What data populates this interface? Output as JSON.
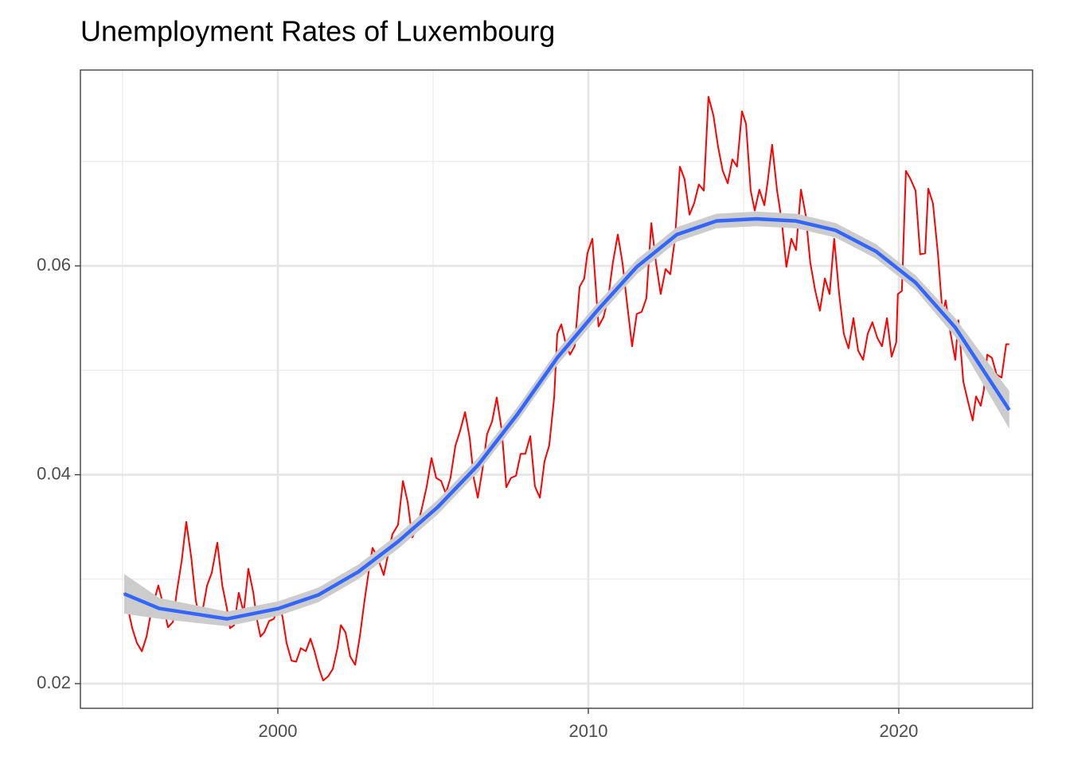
{
  "chart_data": {
    "type": "line",
    "title": "Unemployment Rates of Luxembourg",
    "xlim": [
      1993.64,
      2024.31
    ],
    "ylim": [
      0.01764,
      0.07875
    ],
    "xticks": [
      2000,
      2010,
      2020
    ],
    "yticks": [
      0.02,
      0.04,
      0.06
    ],
    "x_minor_grid": [
      1995,
      2005,
      2015
    ],
    "y_minor_grid": [
      0.03,
      0.05,
      0.07
    ],
    "grid": true,
    "series": [
      {
        "color": "#ff0000",
        "x": [
          1995.05,
          1995.15,
          1995.31,
          1995.46,
          1995.62,
          1995.77,
          1995.92,
          1996.15,
          1996.31,
          1996.46,
          1996.62,
          1996.74,
          1996.9,
          1997.05,
          1997.21,
          1997.36,
          1997.51,
          1997.72,
          1997.87,
          1998.05,
          1998.21,
          1998.36,
          1998.46,
          1998.59,
          1998.74,
          1998.9,
          1999.05,
          1999.21,
          1999.31,
          1999.44,
          1999.56,
          1999.72,
          1999.87,
          2000.03,
          2000.15,
          2000.28,
          2000.44,
          2000.59,
          2000.74,
          2000.9,
          2001.05,
          2001.18,
          2001.33,
          2001.46,
          2001.62,
          2001.77,
          2001.92,
          2002.03,
          2002.18,
          2002.33,
          2002.49,
          2002.64,
          2002.79,
          2002.92,
          2003.05,
          2003.21,
          2003.41,
          2003.56,
          2003.69,
          2003.87,
          2004.03,
          2004.18,
          2004.33,
          2004.49,
          2004.64,
          2004.79,
          2004.95,
          2005.1,
          2005.26,
          2005.41,
          2005.56,
          2005.72,
          2005.87,
          2006.03,
          2006.18,
          2006.31,
          2006.44,
          2006.59,
          2006.74,
          2006.9,
          2007.05,
          2007.21,
          2007.36,
          2007.51,
          2007.67,
          2007.82,
          2007.97,
          2008.13,
          2008.28,
          2008.44,
          2008.59,
          2008.74,
          2008.9,
          2009.0,
          2009.13,
          2009.26,
          2009.41,
          2009.56,
          2009.72,
          2009.87,
          2009.97,
          2010.13,
          2010.23,
          2010.33,
          2010.49,
          2010.64,
          2010.79,
          2010.95,
          2011.1,
          2011.26,
          2011.41,
          2011.56,
          2011.72,
          2011.87,
          2012.03,
          2012.18,
          2012.33,
          2012.49,
          2012.64,
          2012.79,
          2012.95,
          2013.1,
          2013.26,
          2013.41,
          2013.56,
          2013.72,
          2013.87,
          2014.03,
          2014.18,
          2014.33,
          2014.49,
          2014.64,
          2014.79,
          2014.95,
          2015.08,
          2015.23,
          2015.36,
          2015.51,
          2015.67,
          2015.77,
          2015.92,
          2016.08,
          2016.23,
          2016.38,
          2016.54,
          2016.69,
          2016.85,
          2017.0,
          2017.15,
          2017.31,
          2017.46,
          2017.62,
          2017.77,
          2017.92,
          2018.08,
          2018.23,
          2018.38,
          2018.54,
          2018.69,
          2018.85,
          2019.0,
          2019.15,
          2019.31,
          2019.46,
          2019.62,
          2019.77,
          2019.92,
          2019.97,
          2020.1,
          2020.23,
          2020.38,
          2020.54,
          2020.69,
          2020.85,
          2020.95,
          2021.1,
          2021.26,
          2021.41,
          2021.51,
          2021.67,
          2021.82,
          2021.92,
          2022.08,
          2022.23,
          2022.38,
          2022.49,
          2022.64,
          2022.74,
          2022.85,
          2023.0,
          2023.15,
          2023.31,
          2023.46,
          2023.56
        ],
        "values": [
          0.0287,
          0.0275,
          0.0253,
          0.0239,
          0.0231,
          0.0245,
          0.0269,
          0.0294,
          0.0275,
          0.0254,
          0.0259,
          0.0287,
          0.0317,
          0.0355,
          0.0321,
          0.0279,
          0.0259,
          0.0294,
          0.0306,
          0.0335,
          0.0294,
          0.0272,
          0.0253,
          0.0256,
          0.0287,
          0.0268,
          0.031,
          0.0287,
          0.0264,
          0.0245,
          0.0249,
          0.026,
          0.0262,
          0.0275,
          0.0264,
          0.0239,
          0.0222,
          0.0221,
          0.0234,
          0.0231,
          0.0243,
          0.0231,
          0.0214,
          0.0203,
          0.0207,
          0.0214,
          0.0234,
          0.0256,
          0.0249,
          0.0226,
          0.0218,
          0.0245,
          0.0279,
          0.0306,
          0.033,
          0.0321,
          0.0304,
          0.0325,
          0.0343,
          0.0352,
          0.0394,
          0.0374,
          0.034,
          0.035,
          0.0368,
          0.0388,
          0.0416,
          0.0397,
          0.0394,
          0.0382,
          0.0397,
          0.0428,
          0.0442,
          0.046,
          0.0435,
          0.0397,
          0.0378,
          0.0405,
          0.0439,
          0.0451,
          0.0474,
          0.0443,
          0.0388,
          0.0397,
          0.0399,
          0.042,
          0.042,
          0.0437,
          0.0389,
          0.0378,
          0.0413,
          0.0428,
          0.0474,
          0.0535,
          0.0544,
          0.0527,
          0.0515,
          0.0523,
          0.058,
          0.0588,
          0.0612,
          0.0626,
          0.0584,
          0.0542,
          0.0551,
          0.0569,
          0.0603,
          0.063,
          0.0603,
          0.0561,
          0.0523,
          0.0554,
          0.0556,
          0.0569,
          0.0641,
          0.0603,
          0.0573,
          0.0597,
          0.0592,
          0.0626,
          0.0695,
          0.0683,
          0.0649,
          0.066,
          0.0678,
          0.0672,
          0.0762,
          0.0744,
          0.0714,
          0.0691,
          0.0679,
          0.0702,
          0.0695,
          0.0748,
          0.0736,
          0.0672,
          0.0653,
          0.0673,
          0.0658,
          0.0679,
          0.0716,
          0.0672,
          0.0643,
          0.0599,
          0.0626,
          0.0615,
          0.0673,
          0.0649,
          0.0603,
          0.0576,
          0.0557,
          0.0588,
          0.0573,
          0.0626,
          0.0573,
          0.0535,
          0.0521,
          0.055,
          0.0519,
          0.051,
          0.0535,
          0.0546,
          0.0531,
          0.0523,
          0.055,
          0.0513,
          0.0527,
          0.0573,
          0.0576,
          0.0691,
          0.0683,
          0.0672,
          0.0611,
          0.0612,
          0.0674,
          0.066,
          0.0612,
          0.0554,
          0.0567,
          0.0535,
          0.051,
          0.0548,
          0.0489,
          0.047,
          0.0452,
          0.0475,
          0.0466,
          0.0481,
          0.0515,
          0.0512,
          0.0496,
          0.0493,
          0.0525,
          0.0525
        ]
      },
      {
        "color": "#3366ff",
        "band_color": "#cccccc",
        "x": [
          1995.05,
          1996.18,
          1998.36,
          2000.03,
          2001.31,
          2002.59,
          2003.87,
          2005.15,
          2006.44,
          2007.72,
          2009.0,
          2010.28,
          2011.56,
          2012.85,
          2014.13,
          2015.41,
          2016.69,
          2017.97,
          2019.26,
          2020.54,
          2021.82,
          2023.56
        ],
        "values": [
          0.0286,
          0.0272,
          0.0262,
          0.0272,
          0.0285,
          0.0307,
          0.0336,
          0.0369,
          0.0409,
          0.0458,
          0.0512,
          0.0557,
          0.0599,
          0.063,
          0.0643,
          0.0645,
          0.0643,
          0.0634,
          0.0614,
          0.0584,
          0.0541,
          0.0462
        ],
        "lower": [
          0.0267,
          0.0262,
          0.0255,
          0.0265,
          0.0278,
          0.03,
          0.0329,
          0.0362,
          0.0402,
          0.0451,
          0.0505,
          0.055,
          0.0592,
          0.0623,
          0.0636,
          0.0638,
          0.0636,
          0.0627,
          0.0607,
          0.0577,
          0.0532,
          0.0444
        ],
        "upper": [
          0.0305,
          0.0282,
          0.0269,
          0.0279,
          0.0292,
          0.0314,
          0.0343,
          0.0376,
          0.0416,
          0.0465,
          0.0519,
          0.0564,
          0.0606,
          0.0637,
          0.065,
          0.0652,
          0.065,
          0.0641,
          0.0621,
          0.0591,
          0.055,
          0.048
        ]
      }
    ]
  }
}
